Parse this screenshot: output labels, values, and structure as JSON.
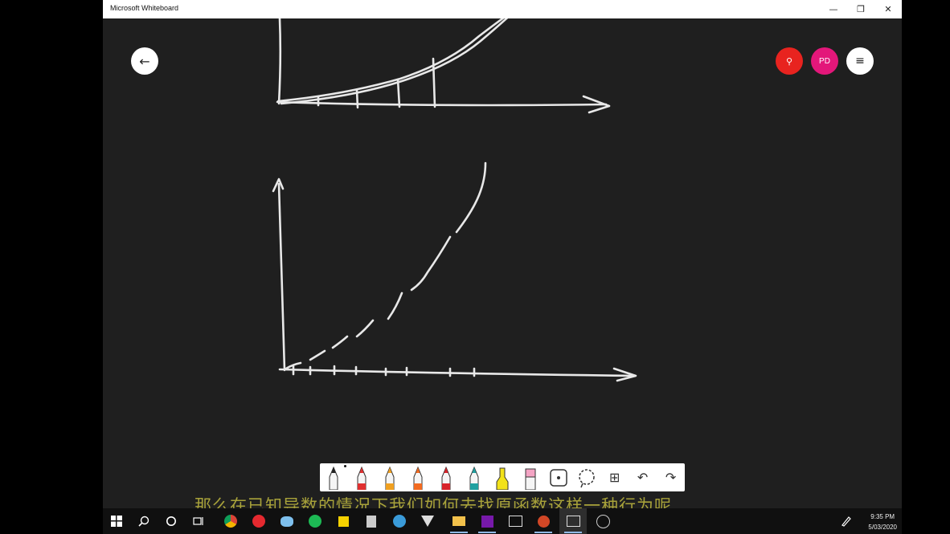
{
  "window": {
    "title": "Microsoft Whiteboard",
    "minimize_glyph": "—",
    "restore_glyph": "❐",
    "close_glyph": "✕"
  },
  "header": {
    "back_icon": "arrow-left-icon",
    "back_glyph": "←",
    "share_icon": "add-person-icon",
    "share_glyph": "⚲",
    "avatar_initials": "PD",
    "menu_glyph": "≡"
  },
  "toolbar": {
    "tools": [
      {
        "name": "pen-black",
        "color": "#222222"
      },
      {
        "name": "pen-red",
        "color": "#e03030"
      },
      {
        "name": "pen-orange",
        "color": "#f0a020"
      },
      {
        "name": "pen-orange-red",
        "color": "#f26b21"
      },
      {
        "name": "pen-red-2",
        "color": "#d8232a"
      },
      {
        "name": "pen-teal",
        "color": "#20a0a0"
      },
      {
        "name": "highlighter-yellow",
        "color": "#f2e21a"
      },
      {
        "name": "eraser",
        "color": "#f4a4c4"
      },
      {
        "name": "ruler",
        "color": "#333333"
      },
      {
        "name": "lasso",
        "color": "#333333"
      },
      {
        "name": "add-shape",
        "color": "#333333"
      },
      {
        "name": "undo",
        "color": "#333333"
      },
      {
        "name": "redo",
        "color": "#333333"
      }
    ],
    "add_glyph": "⊞",
    "undo_glyph": "↶",
    "redo_glyph": "↷"
  },
  "subtitle": "那么在已知导数的情况下我们如何去找原函数这样一种行为呢",
  "taskbar": {
    "start_icon": "windows-icon",
    "search_icon": "search-icon",
    "cortana_icon": "cortana-icon",
    "task_view_icon": "task-view-icon",
    "apps": [
      {
        "name": "chrome-icon",
        "color": "#f4b400"
      },
      {
        "name": "vivaldi-icon",
        "color": "#e5292f"
      },
      {
        "name": "paint-icon",
        "color": "#7ec0ee"
      },
      {
        "name": "spotify-icon",
        "color": "#1db954"
      },
      {
        "name": "sticky-notes-icon",
        "color": "#f7d200"
      },
      {
        "name": "calculator-icon",
        "color": "#cccccc"
      },
      {
        "name": "maps-icon",
        "color": "#3a9bd9"
      },
      {
        "name": "fox-icon",
        "color": "#dddddd"
      },
      {
        "name": "file-explorer-icon",
        "color": "#f3c14b"
      },
      {
        "name": "onenote-icon",
        "color": "#7719aa"
      },
      {
        "name": "photos-icon",
        "color": "#dddddd"
      },
      {
        "name": "powerpoint-icon",
        "color": "#d24726"
      },
      {
        "name": "whiteboard-icon",
        "color": "#dddddd"
      },
      {
        "name": "obs-icon",
        "color": "#cccccc"
      }
    ],
    "tray_icon": "pen-tray-icon",
    "time": "9:35 PM",
    "date": "5/03/2020"
  }
}
